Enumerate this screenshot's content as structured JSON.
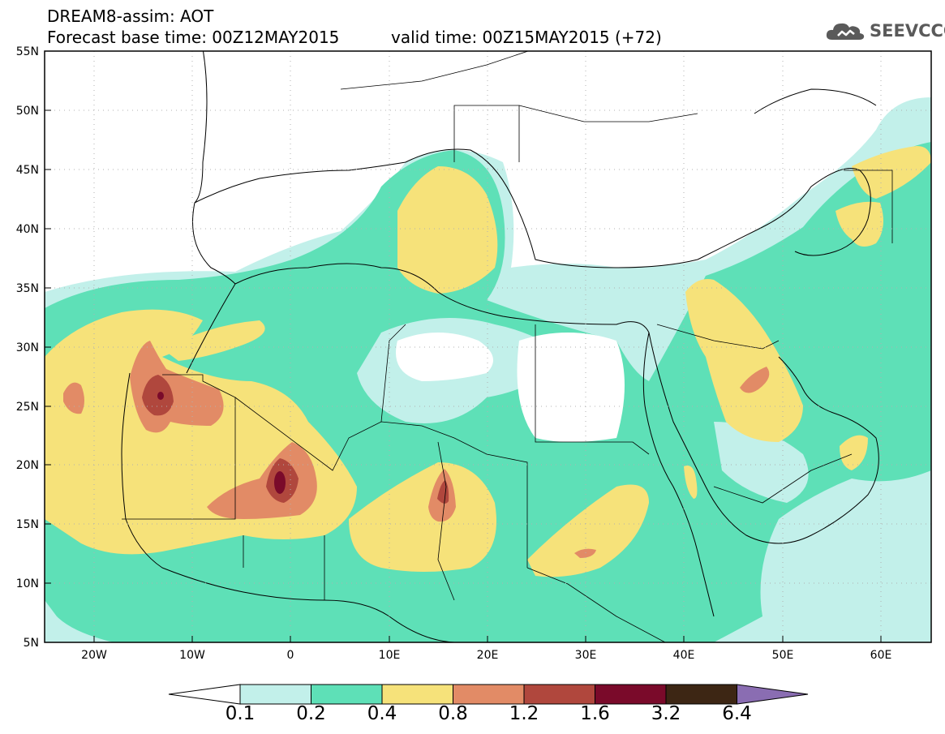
{
  "header": {
    "line1": "DREAM8-assim: AOT",
    "base_time": "Forecast base time: 00Z12MAY2015",
    "valid_time": "valid time: 00Z15MAY2015 (+72)"
  },
  "logo": {
    "text": "SEEVCCC",
    "icon": "cloud-icon"
  },
  "map": {
    "region": "North Africa, Mediterranean, Middle East",
    "lon_range": [
      -25,
      65
    ],
    "lat_range": [
      5,
      55
    ],
    "lon_ticks": [
      "20W",
      "10W",
      "0",
      "10E",
      "20E",
      "30E",
      "40E",
      "50E",
      "60E"
    ],
    "lat_ticks": [
      "55N",
      "50N",
      "45N",
      "40N",
      "35N",
      "30N",
      "25N",
      "20N",
      "15N",
      "10N",
      "5N"
    ],
    "grid": "dotted",
    "features": [
      {
        "name": "dust-max-mauritania",
        "lon": -0.5,
        "lat": 18.5,
        "value_class": "3.2"
      },
      {
        "name": "dust-max-western-sahara",
        "lon": -13.3,
        "lat": 25.8,
        "value_class": "3.2"
      },
      {
        "name": "dust-max-chad",
        "lon": 15.5,
        "lat": 16.8,
        "value_class": "1.6"
      }
    ]
  },
  "colorbar": {
    "levels": [
      "0.1",
      "0.2",
      "0.4",
      "0.8",
      "1.2",
      "1.6",
      "3.2",
      "6.4"
    ],
    "colors": {
      "below": "#ffffff",
      "b1": "#c2f0ea",
      "b2": "#5ee0b7",
      "b3": "#f6e27a",
      "b4": "#e28b66",
      "b5": "#b0473d",
      "b6": "#7a0a2a",
      "b7": "#3d2614",
      "above": "#8a6db2"
    }
  }
}
